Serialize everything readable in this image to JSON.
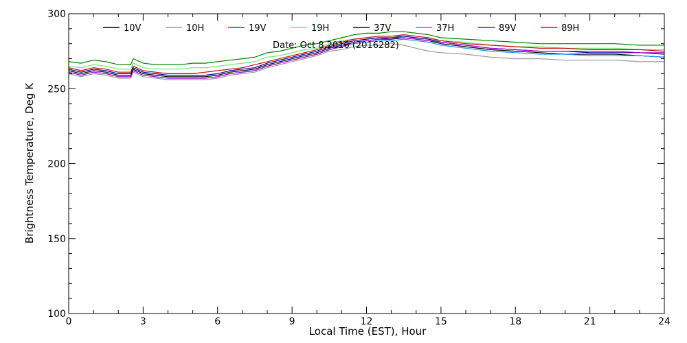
{
  "chart_data": {
    "type": "line",
    "title": "",
    "annotation": "Date: Oct  8,2016 (2016282)",
    "xlabel": "Local Time (EST), Hour",
    "ylabel": "Brightness Temperature, Deg  K",
    "xlim": [
      0,
      24
    ],
    "ylim": [
      100,
      300
    ],
    "xticks": [
      0,
      3,
      6,
      9,
      12,
      15,
      18,
      21,
      24
    ],
    "yticks": [
      100,
      150,
      200,
      250,
      300
    ],
    "grid": false,
    "legend_position": "top",
    "x": [
      0,
      0.5,
      1,
      1.5,
      2,
      2.5,
      2.6,
      3,
      3.5,
      4,
      4.5,
      5,
      5.5,
      6,
      6.5,
      7,
      7.5,
      8,
      8.5,
      9,
      9.5,
      10,
      10.5,
      11,
      11.5,
      12,
      12.5,
      13,
      13.5,
      14,
      14.5,
      15,
      16,
      17,
      18,
      19,
      20,
      21,
      22,
      23,
      24
    ],
    "series": [
      {
        "name": "10V",
        "color": "#000000",
        "values": [
          262,
          260,
          262,
          261,
          259,
          259,
          263,
          260,
          259,
          258,
          258,
          258,
          258,
          259,
          261,
          262,
          263,
          266,
          268,
          270,
          272,
          274,
          277,
          279,
          281,
          282,
          283,
          283,
          284,
          283,
          282,
          280,
          278,
          276,
          275,
          274,
          273,
          273,
          273,
          272,
          271
        ]
      },
      {
        "name": "10H",
        "color": "#999999",
        "values": [
          260,
          258,
          260,
          259,
          257,
          257,
          261,
          258,
          257,
          256,
          256,
          256,
          256,
          257,
          259,
          260,
          261,
          264,
          266,
          268,
          270,
          272,
          275,
          276,
          278,
          279,
          279,
          280,
          279,
          277,
          275,
          274,
          273,
          271,
          270,
          270,
          269,
          269,
          269,
          268,
          268
        ]
      },
      {
        "name": "19V",
        "color": "#008000",
        "values": [
          268,
          267,
          269,
          268,
          266,
          266,
          270,
          267,
          266,
          266,
          266,
          267,
          267,
          268,
          269,
          270,
          271,
          274,
          275,
          277,
          279,
          280,
          282,
          284,
          286,
          287,
          287,
          288,
          288,
          287,
          286,
          284,
          283,
          282,
          281,
          280,
          280,
          280,
          280,
          279,
          279
        ]
      },
      {
        "name": "19H",
        "color": "#66ee66",
        "values": [
          265,
          264,
          266,
          265,
          263,
          263,
          267,
          264,
          263,
          263,
          263,
          264,
          264,
          265,
          266,
          267,
          268,
          271,
          272,
          274,
          276,
          277,
          280,
          282,
          283,
          284,
          285,
          285,
          285,
          284,
          283,
          282,
          281,
          279,
          278,
          278,
          277,
          277,
          277,
          276,
          276
        ]
      },
      {
        "name": "37V",
        "color": "#0000aa",
        "values": [
          263,
          261,
          263,
          262,
          260,
          260,
          264,
          261,
          260,
          259,
          259,
          259,
          259,
          260,
          262,
          263,
          264,
          267,
          269,
          271,
          273,
          275,
          278,
          280,
          282,
          283,
          284,
          284,
          285,
          284,
          283,
          281,
          279,
          277,
          276,
          275,
          275,
          274,
          274,
          274,
          273
        ]
      },
      {
        "name": "37H",
        "color": "#1e90ff",
        "values": [
          261,
          259,
          261,
          260,
          258,
          258,
          262,
          259,
          258,
          257,
          257,
          257,
          257,
          258,
          260,
          261,
          262,
          265,
          267,
          269,
          271,
          273,
          276,
          278,
          280,
          281,
          282,
          282,
          283,
          282,
          281,
          279,
          277,
          275,
          274,
          273,
          273,
          272,
          272,
          272,
          271
        ]
      },
      {
        "name": "89V",
        "color": "#cc0000",
        "values": [
          264,
          262,
          264,
          263,
          261,
          261,
          265,
          262,
          261,
          260,
          260,
          260,
          261,
          262,
          263,
          264,
          266,
          268,
          270,
          272,
          274,
          276,
          279,
          281,
          283,
          284,
          285,
          285,
          286,
          285,
          284,
          282,
          280,
          279,
          278,
          277,
          277,
          276,
          276,
          276,
          275
        ]
      },
      {
        "name": "89H",
        "color": "#aa00cc",
        "values": [
          261,
          259,
          261,
          260,
          258,
          258,
          262,
          259,
          258,
          257,
          257,
          257,
          257,
          258,
          260,
          261,
          262,
          265,
          267,
          269,
          271,
          273,
          276,
          278,
          281,
          282,
          283,
          284,
          284,
          283,
          282,
          281,
          279,
          277,
          276,
          275,
          275,
          275,
          275,
          274,
          274
        ]
      }
    ]
  }
}
